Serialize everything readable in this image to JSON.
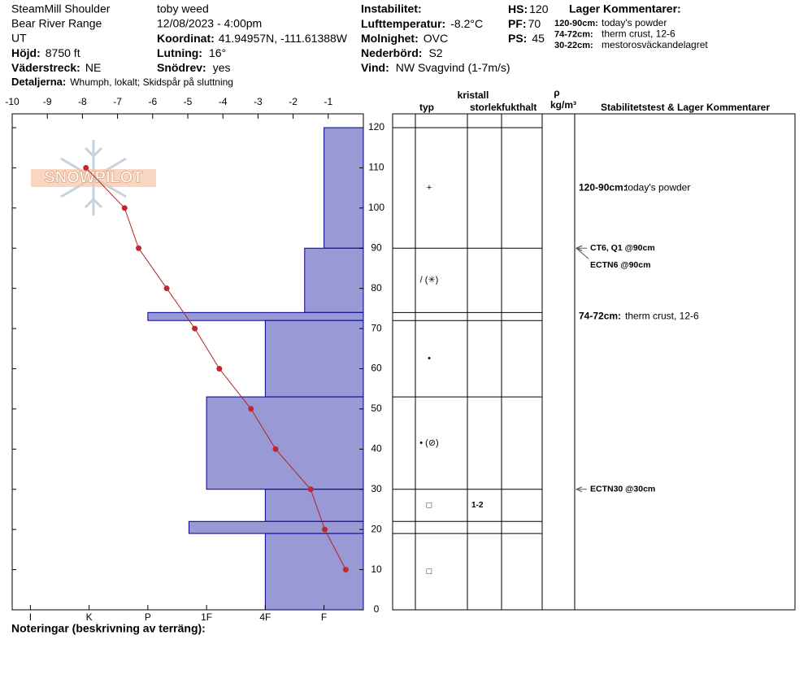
{
  "header": {
    "site": "SteamMill Shoulder",
    "range": "Bear River Range",
    "state": "UT",
    "observer": "toby weed",
    "datetime": "12/08/2023 - 4:00pm",
    "elevation": {
      "label": "Höjd:",
      "value": "8750 ft"
    },
    "aspect": {
      "label": "Väderstreck:",
      "value": "NE"
    },
    "details": {
      "label": "Detaljerna:",
      "value": "Whumph, lokalt;  Skidspår på sluttning"
    },
    "coordinates": {
      "label": "Koordinat:",
      "value": "41.94957N, -111.61388W"
    },
    "slope": {
      "label": "Lutning:",
      "value": "16°"
    },
    "wind_loading": {
      "label": "Snödrev:",
      "value": "yes"
    },
    "instability": {
      "label": "Instabilitet:"
    },
    "air_temperature": {
      "label": "Lufttemperatur:",
      "value": "-8.2°C"
    },
    "sky": {
      "label": "Molnighet:",
      "value": "OVC"
    },
    "precipitation": {
      "label": "Nederbörd:",
      "value": "S2"
    },
    "wind": {
      "label": "Vind:",
      "value": "NW Svagvind (1-7m/s)"
    },
    "hs": {
      "label": "HS:",
      "value": "120"
    },
    "pf": {
      "label": "PF:",
      "value": "70"
    },
    "ps": {
      "label": "PS:",
      "value": "45"
    },
    "layer_comments": {
      "title": "Lager Kommentarer:",
      "items": [
        {
          "range": "120-90cm:",
          "text": "today's powder"
        },
        {
          "range": "74-72cm:",
          "text": "therm crust, 12-6"
        },
        {
          "range": "30-22cm:",
          "text": "mestorosväckandelagret"
        }
      ]
    }
  },
  "logo": "SNOWPILOT",
  "table_headers": {
    "crystal": "kristall",
    "type": "typ",
    "size": "storlek",
    "moisture": "fukthalt",
    "rho": "ρ",
    "density_unit": "kg/m³",
    "comments": "Stabilitetstest & Lager Kommentarer"
  },
  "notes": "Noteringar (beskrivning av terräng):",
  "chart_data": {
    "type": "snow-profile",
    "ylim": [
      0,
      120
    ],
    "yticks": [
      0,
      10,
      20,
      30,
      40,
      50,
      60,
      70,
      80,
      90,
      100,
      110,
      120
    ],
    "temperature": {
      "xlim": [
        -10,
        0
      ],
      "xticks": [
        -10,
        -9,
        -8,
        -7,
        -6,
        -5,
        -4,
        -3,
        -2,
        -1
      ],
      "color": "#b22222",
      "depth": [
        110,
        100,
        90,
        80,
        70,
        60,
        50,
        40,
        30,
        20,
        10
      ],
      "values": [
        -7.9,
        -6.8,
        -6.4,
        -5.6,
        -4.8,
        -4.1,
        -3.2,
        -2.5,
        -1.5,
        -1.1,
        -0.5
      ]
    },
    "hardness": {
      "xlim": [
        6.31,
        0.33
      ],
      "color": "#9999d6",
      "xticks": [
        {
          "value": 6,
          "label": "I"
        },
        {
          "value": 5,
          "label": "K"
        },
        {
          "value": 4,
          "label": "P"
        },
        {
          "value": 3,
          "label": "1F"
        },
        {
          "value": 2,
          "label": "4F"
        },
        {
          "value": 1,
          "label": "F"
        }
      ]
    },
    "layers": [
      {
        "top": 120,
        "bottom": 90,
        "hardness": 1,
        "grain": "+",
        "comment": {
          "range": "120-90cm:",
          "text": "today's powder"
        }
      },
      {
        "top": 90,
        "bottom": 74,
        "hardness": 1.33,
        "grain": "/ (✳)"
      },
      {
        "top": 74,
        "bottom": 72,
        "hardness": 4,
        "comment": {
          "range": "74-72cm:",
          "text": "therm crust, 12-6"
        }
      },
      {
        "top": 72,
        "bottom": 53,
        "hardness": 2,
        "grain": "•"
      },
      {
        "top": 53,
        "bottom": 30,
        "hardness": 3,
        "grain": "• (⊘)"
      },
      {
        "top": 30,
        "bottom": 22,
        "hardness": 2,
        "grain": "□",
        "size": "1-2"
      },
      {
        "top": 22,
        "bottom": 19,
        "hardness": 3.3
      },
      {
        "top": 19,
        "bottom": 0,
        "hardness": 2,
        "grain": "□"
      }
    ],
    "tests": [
      {
        "text": "CT6, Q1 @90cm",
        "depth": 90
      },
      {
        "text": "ECTN6 @90cm",
        "depth": 90
      },
      {
        "text": "ECTN30 @30cm",
        "depth": 30
      }
    ]
  }
}
